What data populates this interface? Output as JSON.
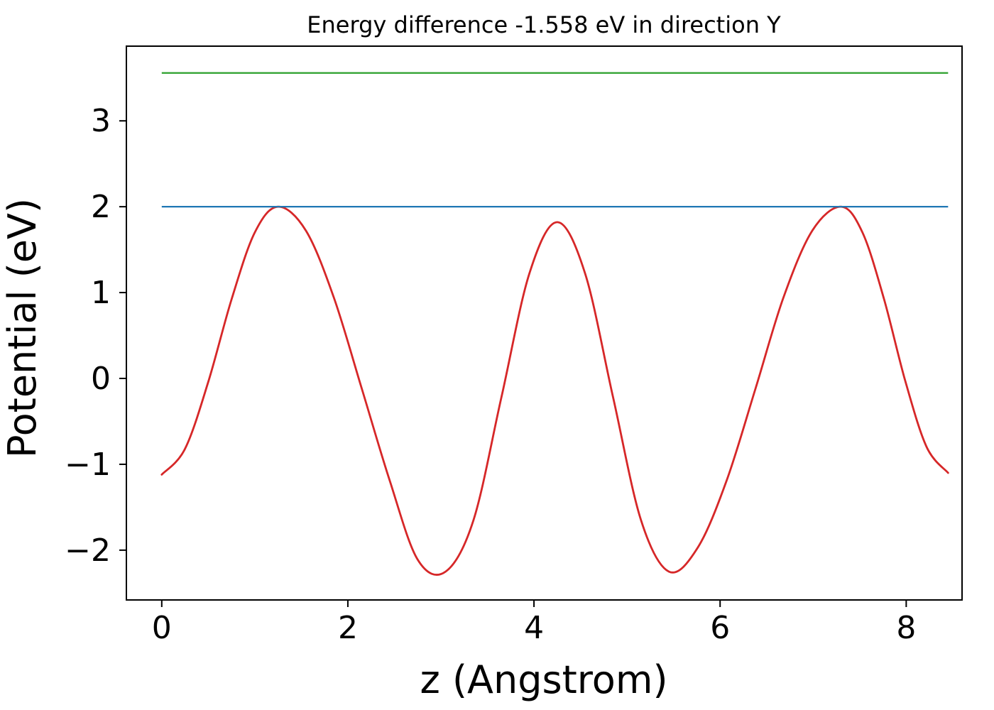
{
  "chart_data": {
    "type": "line",
    "title": "Energy difference -1.558 eV in direction Y",
    "xlabel": "z (Angstrom)",
    "ylabel": "Potential (eV)",
    "direction": "Y",
    "energy_difference_eV": -1.558,
    "xlim": [
      -0.38,
      8.6
    ],
    "ylim": [
      -2.58,
      3.87
    ],
    "grid": false,
    "legend": "none",
    "xticks": {
      "values": [
        0,
        2,
        4,
        6,
        8
      ],
      "labels": [
        "0",
        "2",
        "4",
        "6",
        "8"
      ]
    },
    "yticks": {
      "values": [
        -2,
        -1,
        0,
        1,
        2,
        3
      ],
      "labels": [
        "−2",
        "−1",
        "0",
        "1",
        "2",
        "3"
      ]
    },
    "series": [
      {
        "name": "potential-curve",
        "kind": "curve",
        "color": "#d62728",
        "x": [
          0,
          0.25,
          0.5,
          0.75,
          1.0,
          1.25,
          1.55,
          1.85,
          2.15,
          2.45,
          2.75,
          3.05,
          3.35,
          3.65,
          3.95,
          4.25,
          4.55,
          4.85,
          5.15,
          5.45,
          5.76,
          6.07,
          6.38,
          6.68,
          6.99,
          7.3,
          7.53,
          7.76,
          7.99,
          8.22,
          8.45
        ],
        "y": [
          -1.12,
          -0.82,
          -0.04,
          0.92,
          1.7,
          2.0,
          1.72,
          0.94,
          -0.12,
          -1.19,
          -2.11,
          -2.25,
          -1.65,
          -0.22,
          1.22,
          1.82,
          1.22,
          -0.22,
          -1.65,
          -2.25,
          -1.97,
          -1.19,
          -0.12,
          0.94,
          1.72,
          2.0,
          1.7,
          0.93,
          -0.03,
          -0.8,
          -1.1
        ]
      },
      {
        "name": "level-line-blue",
        "kind": "hline",
        "color": "#1f77b4",
        "y": 2.0,
        "x_start": 0,
        "x_end": 8.45
      },
      {
        "name": "level-line-green",
        "kind": "hline",
        "color": "#2ca02c",
        "y": 3.558,
        "x_start": 0,
        "x_end": 8.45
      }
    ]
  }
}
